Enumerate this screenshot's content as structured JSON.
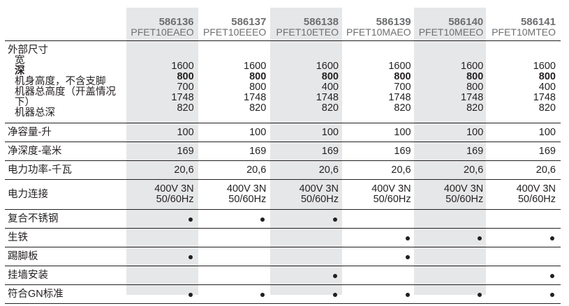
{
  "columns": [
    {
      "code": "586136",
      "model": "PFET10EAEO"
    },
    {
      "code": "586137",
      "model": "PFET10EEEO"
    },
    {
      "code": "586138",
      "model": "PFET10ETEO"
    },
    {
      "code": "586139",
      "model": "PFET10MAEO"
    },
    {
      "code": "586140",
      "model": "PFET10MEEO"
    },
    {
      "code": "586141",
      "model": "PFET10MTEO"
    }
  ],
  "dimensions": {
    "title": "外部尺寸",
    "labels": [
      "宽",
      "深",
      "机身高度，不含支脚",
      "机器总高度（开盖情况下）",
      "机器总深"
    ],
    "values": [
      [
        "1600",
        "800",
        "700",
        "1748",
        "820"
      ],
      [
        "1600",
        "800",
        "800",
        "1748",
        "820"
      ],
      [
        "1600",
        "800",
        "400",
        "1748",
        "820"
      ],
      [
        "1600",
        "800",
        "700",
        "1748",
        "820"
      ],
      [
        "1600",
        "800",
        "800",
        "1748",
        "820"
      ],
      [
        "1600",
        "800",
        "400",
        "1748",
        "820"
      ]
    ]
  },
  "rows": [
    {
      "label": "净容量-升",
      "values": [
        "100",
        "100",
        "100",
        "100",
        "100",
        "100"
      ]
    },
    {
      "label": "净深度-毫米",
      "values": [
        "169",
        "169",
        "169",
        "169",
        "169",
        "169"
      ]
    },
    {
      "label": "电力功率-千瓦",
      "values": [
        "20,6",
        "20,6",
        "20,6",
        "20,6",
        "20,6",
        "20,6"
      ]
    }
  ],
  "power": {
    "label": "电力连接",
    "line1": "400V 3N",
    "line2": "50/60Hz"
  },
  "features": [
    {
      "label": "复合不锈钢",
      "marks": [
        true,
        true,
        true,
        false,
        false,
        false
      ]
    },
    {
      "label": "生铁",
      "marks": [
        false,
        false,
        false,
        true,
        true,
        true
      ]
    },
    {
      "label": "踢脚板",
      "marks": [
        true,
        false,
        false,
        true,
        false,
        false
      ]
    },
    {
      "label": "挂墙安装",
      "marks": [
        false,
        false,
        true,
        false,
        false,
        true
      ]
    },
    {
      "label": "符合GN标准",
      "marks": [
        true,
        true,
        true,
        true,
        true,
        true
      ]
    }
  ],
  "colors": {
    "shade": "#e6e7e8",
    "header_text": "#6d6e70",
    "text": "#231f20"
  }
}
